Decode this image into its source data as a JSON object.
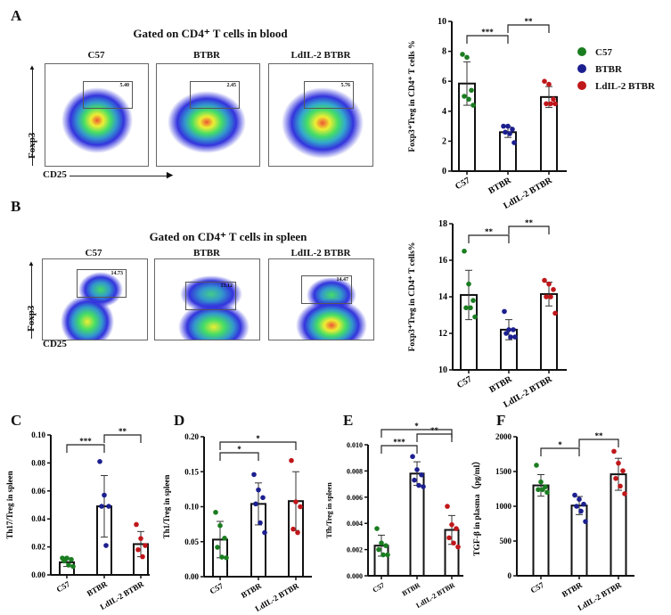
{
  "colors": {
    "C57": "#1b7d21",
    "BTBR": "#1c1f8f",
    "LdIL-2 BTBR": "#c0171b"
  },
  "groups": [
    "C57",
    "BTBR",
    "LdIL-2 BTBR"
  ],
  "panel_letters": [
    "A",
    "B",
    "C",
    "D",
    "E",
    "F"
  ],
  "legend": [
    {
      "label": "C57",
      "color": "#1b7d21"
    },
    {
      "label": "BTBR",
      "color": "#1c1f8f"
    },
    {
      "label": "LdIL-2 BTBR",
      "color": "#c0171b"
    }
  ],
  "flow": {
    "A": {
      "title": "Gated on CD4⁺ T cells in blood",
      "x_axis": "CD25",
      "y_axis": "Foxp3",
      "plots": [
        {
          "label": "C57",
          "gate": "5.40"
        },
        {
          "label": "BTBR",
          "gate": "2.45"
        },
        {
          "label": "LdIL-2 BTBR",
          "gate": "5.76"
        }
      ]
    },
    "B": {
      "title": "Gated on CD4⁺ T cells in spleen",
      "x_axis": "CD25",
      "y_axis": "Foxp3",
      "plots": [
        {
          "label": "C57",
          "gate": "14.73"
        },
        {
          "label": "BTBR",
          "gate": "13.12"
        },
        {
          "label": "LdIL-2 BTBR",
          "gate": "14.47"
        }
      ]
    }
  },
  "chart_data": [
    {
      "panel": "A",
      "type": "bar",
      "ylabel": "Foxp3⁺Treg in CD4⁺ T cells %",
      "categories": [
        "C57",
        "BTBR",
        "LdIL-2 BTBR"
      ],
      "ylim": [
        0,
        10
      ],
      "yticks": [
        "0",
        "2",
        "4",
        "6",
        "8",
        "10"
      ],
      "tickvals": [
        0,
        2,
        4,
        6,
        8,
        10
      ],
      "means": [
        5.85,
        2.6,
        4.95
      ],
      "sd": [
        1.45,
        0.35,
        0.7
      ],
      "points": [
        [
          7.8,
          7.6,
          5.4,
          5.0,
          4.8,
          4.4
        ],
        [
          3.0,
          3.0,
          2.8,
          2.6,
          2.5,
          1.9
        ],
        [
          6.0,
          5.8,
          4.8,
          4.5,
          4.5,
          4.5
        ]
      ],
      "significance": [
        {
          "from": 0,
          "to": 1,
          "label": "***"
        },
        {
          "from": 1,
          "to": 2,
          "label": "**"
        }
      ]
    },
    {
      "panel": "B",
      "type": "bar",
      "ylabel": "Foxp3⁺Treg in CD4⁺ T cells%",
      "categories": [
        "C57",
        "BTBR",
        "LdIL-2 BTBR"
      ],
      "ylim": [
        10,
        18
      ],
      "yticks": [
        "10",
        "12",
        "14",
        "16",
        "18"
      ],
      "tickvals": [
        10,
        12,
        14,
        16,
        18
      ],
      "means": [
        14.1,
        12.2,
        14.15
      ],
      "sd": [
        1.35,
        0.55,
        0.65
      ],
      "points": [
        [
          16.5,
          14.7,
          13.8,
          13.4,
          13.4,
          12.9
        ],
        [
          13.2,
          12.2,
          12.2,
          12.0,
          11.8,
          11.8
        ],
        [
          14.9,
          14.7,
          14.4,
          14.0,
          14.0,
          13.1
        ]
      ],
      "significance": [
        {
          "from": 0,
          "to": 1,
          "label": "**"
        },
        {
          "from": 1,
          "to": 2,
          "label": "**"
        }
      ]
    },
    {
      "panel": "C",
      "type": "bar",
      "ylabel": "Th17/Treg in spleen",
      "categories": [
        "C57",
        "BTBR",
        "LdIL-2 BTBR"
      ],
      "ylim": [
        0,
        0.1
      ],
      "yticks": [
        "0.00",
        "0.02",
        "0.04",
        "0.06",
        "0.08",
        "0.10"
      ],
      "tickvals": [
        0,
        0.02,
        0.04,
        0.06,
        0.08,
        0.1
      ],
      "means": [
        0.009,
        0.049,
        0.022
      ],
      "sd": [
        0.003,
        0.022,
        0.009
      ],
      "points": [
        [
          0.012,
          0.012,
          0.011,
          0.01,
          0.007,
          0.006
        ],
        [
          0.081,
          0.057,
          0.049,
          0.049,
          0.021
        ],
        [
          0.036,
          0.026,
          0.021,
          0.018,
          0.013
        ]
      ],
      "significance": [
        {
          "from": 0,
          "to": 1,
          "label": "***"
        },
        {
          "from": 1,
          "to": 2,
          "label": "**"
        }
      ]
    },
    {
      "panel": "D",
      "type": "bar",
      "ylabel": "Th1/Treg  in spleen",
      "categories": [
        "C57",
        "BTBR",
        "LdIL-2 BTBR"
      ],
      "ylim": [
        0,
        0.2
      ],
      "yticks": [
        "0.00",
        "0.05",
        "0.10",
        "0.15",
        "0.20"
      ],
      "tickvals": [
        0,
        0.05,
        0.1,
        0.15,
        0.2
      ],
      "means": [
        0.053,
        0.104,
        0.108
      ],
      "sd": [
        0.026,
        0.03,
        0.042
      ],
      "points": [
        [
          0.092,
          0.073,
          0.055,
          0.042,
          0.028,
          0.027
        ],
        [
          0.146,
          0.124,
          0.113,
          0.104,
          0.077,
          0.063
        ],
        [
          0.166,
          0.107,
          0.1,
          0.068,
          0.063
        ]
      ],
      "significance": [
        {
          "from": 0,
          "to": 1,
          "label": "*"
        },
        {
          "from": 0,
          "to": 2,
          "label": "*"
        }
      ]
    },
    {
      "panel": "E",
      "type": "bar",
      "ylabel": "Tfh/Treg in spleen",
      "categories": [
        "C57",
        "BTBR",
        "LdIL-2 BTBR"
      ],
      "ylim": [
        0,
        0.01
      ],
      "yticks": [
        "0.000",
        "0.002",
        "0.004",
        "0.006",
        "0.008",
        "0.010"
      ],
      "tickvals": [
        0,
        0.002,
        0.004,
        0.006,
        0.008,
        0.01
      ],
      "means": [
        0.0023,
        0.0078,
        0.0035
      ],
      "sd": [
        0.0008,
        0.0009,
        0.0011
      ],
      "points": [
        [
          0.0036,
          0.0025,
          0.0023,
          0.002,
          0.0016,
          0.0016
        ],
        [
          0.0091,
          0.0081,
          0.0077,
          0.0073,
          0.0069,
          0.0068
        ],
        [
          0.0053,
          0.0039,
          0.0036,
          0.0029,
          0.0025,
          0.0022
        ]
      ],
      "significance": [
        {
          "from": 0,
          "to": 1,
          "label": "***"
        },
        {
          "from": 1,
          "to": 2,
          "label": "**"
        },
        {
          "from": 0,
          "to": 2,
          "label": "*"
        }
      ]
    },
    {
      "panel": "F",
      "type": "bar",
      "ylabel": "TGF-β in plasma（pg/ml）",
      "categories": [
        "C57",
        "BTBR",
        "LdIL-2 BTBR"
      ],
      "ylim": [
        0,
        2000
      ],
      "yticks": [
        "0",
        "500",
        "1000",
        "1500",
        "2000"
      ],
      "tickvals": [
        0,
        500,
        1000,
        1500,
        2000
      ],
      "means": [
        1300,
        1010,
        1460
      ],
      "sd": [
        155,
        130,
        230
      ],
      "points": [
        [
          1590,
          1350,
          1280,
          1240,
          1240,
          1200
        ],
        [
          1160,
          1100,
          1030,
          1000,
          930,
          780
        ],
        [
          1790,
          1620,
          1510,
          1400,
          1290,
          1180
        ]
      ],
      "significance": [
        {
          "from": 0,
          "to": 1,
          "label": "*"
        },
        {
          "from": 1,
          "to": 2,
          "label": "**"
        }
      ]
    }
  ]
}
